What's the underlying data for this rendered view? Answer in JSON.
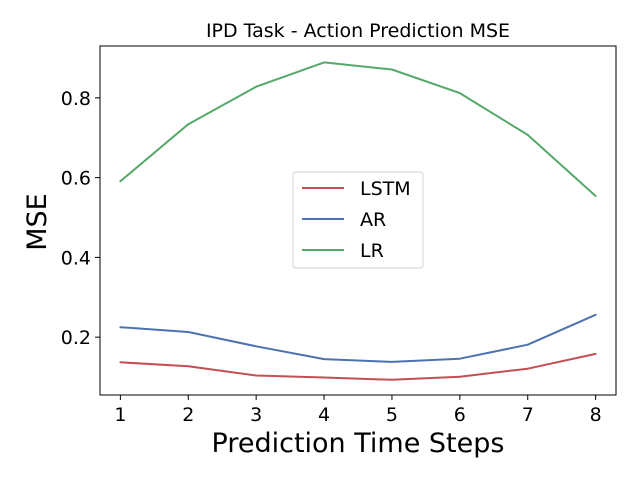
{
  "chart_data": {
    "type": "line",
    "title": "IPD Task - Action Prediction MSE",
    "xlabel": "Prediction Time Steps",
    "ylabel": "MSE",
    "x": [
      1,
      2,
      3,
      4,
      5,
      6,
      7,
      8
    ],
    "xticks": [
      "1",
      "2",
      "3",
      "4",
      "5",
      "6",
      "7",
      "8"
    ],
    "yticks": [
      "0.2",
      "0.4",
      "0.6",
      "0.8"
    ],
    "xlim": [
      0.7,
      8.3
    ],
    "ylim": [
      0.055,
      0.93
    ],
    "grid": false,
    "legend_position": "center-right",
    "series": [
      {
        "name": "LSTM",
        "color": "#c44e52",
        "values": [
          0.137,
          0.127,
          0.104,
          0.099,
          0.093,
          0.101,
          0.121,
          0.158
        ]
      },
      {
        "name": "AR",
        "color": "#4c72b0",
        "values": [
          0.225,
          0.213,
          0.177,
          0.145,
          0.138,
          0.146,
          0.181,
          0.256
        ]
      },
      {
        "name": "LR",
        "color": "#55a868",
        "values": [
          0.591,
          0.734,
          0.828,
          0.889,
          0.871,
          0.812,
          0.707,
          0.554
        ]
      }
    ]
  }
}
